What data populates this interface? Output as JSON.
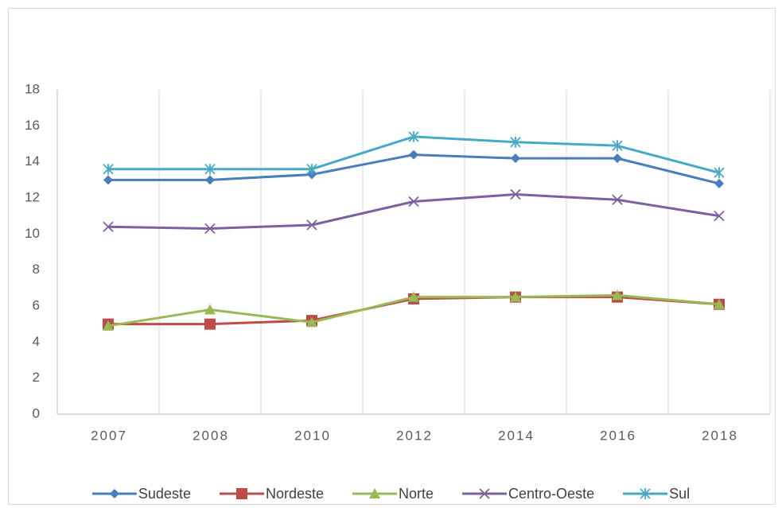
{
  "chart_data": {
    "type": "line",
    "categories": [
      "2007",
      "2008",
      "2010",
      "2012",
      "2014",
      "2016",
      "2018"
    ],
    "series": [
      {
        "name": "Sudeste",
        "color": "#4a7ebb",
        "marker": "diamond",
        "values": [
          13.0,
          13.0,
          13.3,
          14.4,
          14.2,
          14.2,
          12.8
        ]
      },
      {
        "name": "Nordeste",
        "color": "#be4b48",
        "marker": "square",
        "values": [
          5.0,
          5.0,
          5.2,
          6.4,
          6.5,
          6.5,
          6.1
        ]
      },
      {
        "name": "Norte",
        "color": "#98b954",
        "marker": "triangle",
        "values": [
          4.9,
          5.8,
          5.1,
          6.5,
          6.5,
          6.6,
          6.1
        ]
      },
      {
        "name": "Centro-Oeste",
        "color": "#7d60a0",
        "marker": "x",
        "values": [
          10.4,
          10.3,
          10.5,
          11.8,
          12.2,
          11.9,
          11.0
        ]
      },
      {
        "name": "Sul",
        "color": "#46aac5",
        "marker": "star",
        "values": [
          13.6,
          13.6,
          13.6,
          15.4,
          15.1,
          14.9,
          13.4
        ]
      }
    ],
    "ylim": [
      0,
      18
    ],
    "yticks": [
      0,
      2,
      4,
      6,
      8,
      10,
      12,
      14,
      16,
      18
    ],
    "legend": "bottom"
  }
}
